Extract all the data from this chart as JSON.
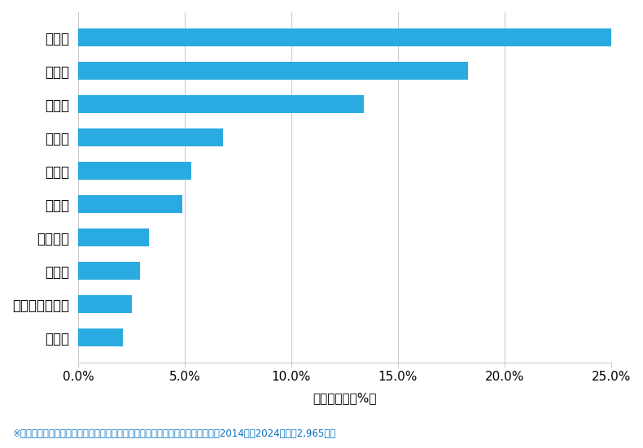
{
  "categories": [
    "村山市",
    "東田川郡庄内町",
    "新庄市",
    "寒河江市",
    "東根市",
    "米沢市",
    "天童市",
    "鶴岡市",
    "酒田市",
    "山形市"
  ],
  "values": [
    2.1,
    2.5,
    2.9,
    3.3,
    4.9,
    5.3,
    6.8,
    13.4,
    18.3,
    25.3
  ],
  "bar_color": "#29ABE2",
  "xlabel": "件数の割合（%）",
  "xlim": [
    0,
    25.0
  ],
  "xtick_values": [
    0.0,
    5.0,
    10.0,
    15.0,
    20.0,
    25.0
  ],
  "xtick_labels": [
    "0.0%",
    "5.0%",
    "10.0%",
    "15.0%",
    "20.0%",
    "25.0%"
  ],
  "footnote": "※弊社受付の案件を対象に、受付時に市区町村の回答があったものを集計（期間2014年～2024年、計2,965件）",
  "footnote_color": "#0070C0",
  "background_color": "#FFFFFF",
  "bar_height": 0.55,
  "figsize": [
    7.9,
    5.51
  ],
  "dpi": 100
}
